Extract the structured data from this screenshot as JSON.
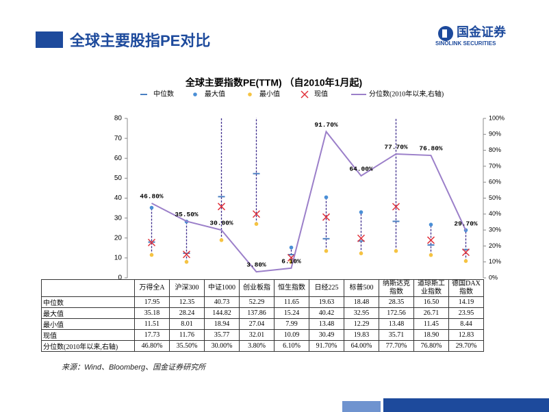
{
  "header": {
    "title": "全球主要股指PE对比",
    "logo_cn": "国金证券",
    "logo_en": "SINOLINK SECURITIES"
  },
  "source": "来源：Wind、Bloomberg、国金证券研究所",
  "chart_data": {
    "type": "rangedot",
    "title": "全球主要指数PE(TTM) （自2010年1月起)",
    "categories": [
      "万得全A",
      "沪深300",
      "中证1000",
      "创业板指",
      "恒生指数",
      "日经225",
      "标普500",
      "纳斯达克指数",
      "道琼斯工业指数",
      "德国DAX指数"
    ],
    "ylim": [
      0,
      80
    ],
    "yticks": [
      0,
      10,
      20,
      30,
      40,
      50,
      60,
      70,
      80
    ],
    "y2lim": [
      0,
      100
    ],
    "y2ticks": [
      {
        "value": 0,
        "label": "0%"
      },
      {
        "value": 10,
        "label": "10%"
      },
      {
        "value": 20,
        "label": "20%"
      },
      {
        "value": 30,
        "label": "30%"
      },
      {
        "value": 40,
        "label": "40%"
      },
      {
        "value": 50,
        "label": "50%"
      },
      {
        "value": 60,
        "label": "60%"
      },
      {
        "value": 70,
        "label": "70%"
      },
      {
        "value": 80,
        "label": "80%"
      },
      {
        "value": 90,
        "label": "90%"
      },
      {
        "value": 100,
        "label": "100%"
      }
    ],
    "series": [
      {
        "name": "中位数",
        "color": "#4a7fc1",
        "values": [
          17.95,
          12.35,
          40.73,
          52.29,
          11.65,
          19.63,
          18.48,
          28.35,
          16.5,
          14.19
        ],
        "value_labels": [
          "17.95",
          "12.35",
          "40.73",
          "52.29",
          "11.65",
          "19.63",
          "18.48",
          "28.35",
          "16.50",
          "14.19"
        ]
      },
      {
        "name": "最大值",
        "color": "#4a8fd6",
        "values": [
          35.18,
          28.24,
          144.82,
          137.86,
          15.24,
          40.42,
          32.95,
          172.56,
          26.71,
          23.95
        ],
        "value_labels": [
          "35.18",
          "28.24",
          "144.82",
          "137.86",
          "15.24",
          "40.42",
          "32.95",
          "172.56",
          "26.71",
          "23.95"
        ]
      },
      {
        "name": "最小值",
        "color": "#f5c342",
        "values": [
          11.51,
          8.01,
          18.94,
          27.04,
          7.99,
          13.48,
          12.29,
          13.48,
          11.45,
          8.44
        ],
        "value_labels": [
          "11.51",
          "8.01",
          "18.94",
          "27.04",
          "7.99",
          "13.48",
          "12.29",
          "13.48",
          "11.45",
          "8.44"
        ]
      },
      {
        "name": "现值",
        "color": "#e0303a",
        "values": [
          17.73,
          11.76,
          35.77,
          32.01,
          10.09,
          30.49,
          19.83,
          35.71,
          18.9,
          12.83
        ],
        "value_labels": [
          "17.73",
          "11.76",
          "35.77",
          "32.01",
          "10.09",
          "30.49",
          "19.83",
          "35.71",
          "18.90",
          "12.83"
        ]
      },
      {
        "name": "分位数(2010年以来,右轴)",
        "color": "#9b7fc9",
        "axis": "y2",
        "values": [
          46.8,
          35.5,
          30,
          3.8,
          6.1,
          91.7,
          64,
          77.7,
          76.8,
          29.7
        ],
        "value_labels": [
          "46.80%",
          "35.50%",
          "30.00%",
          "3.80%",
          "6.10%",
          "91.70%",
          "64.00%",
          "77.70%",
          "76.80%",
          "29.70%"
        ]
      }
    ]
  }
}
